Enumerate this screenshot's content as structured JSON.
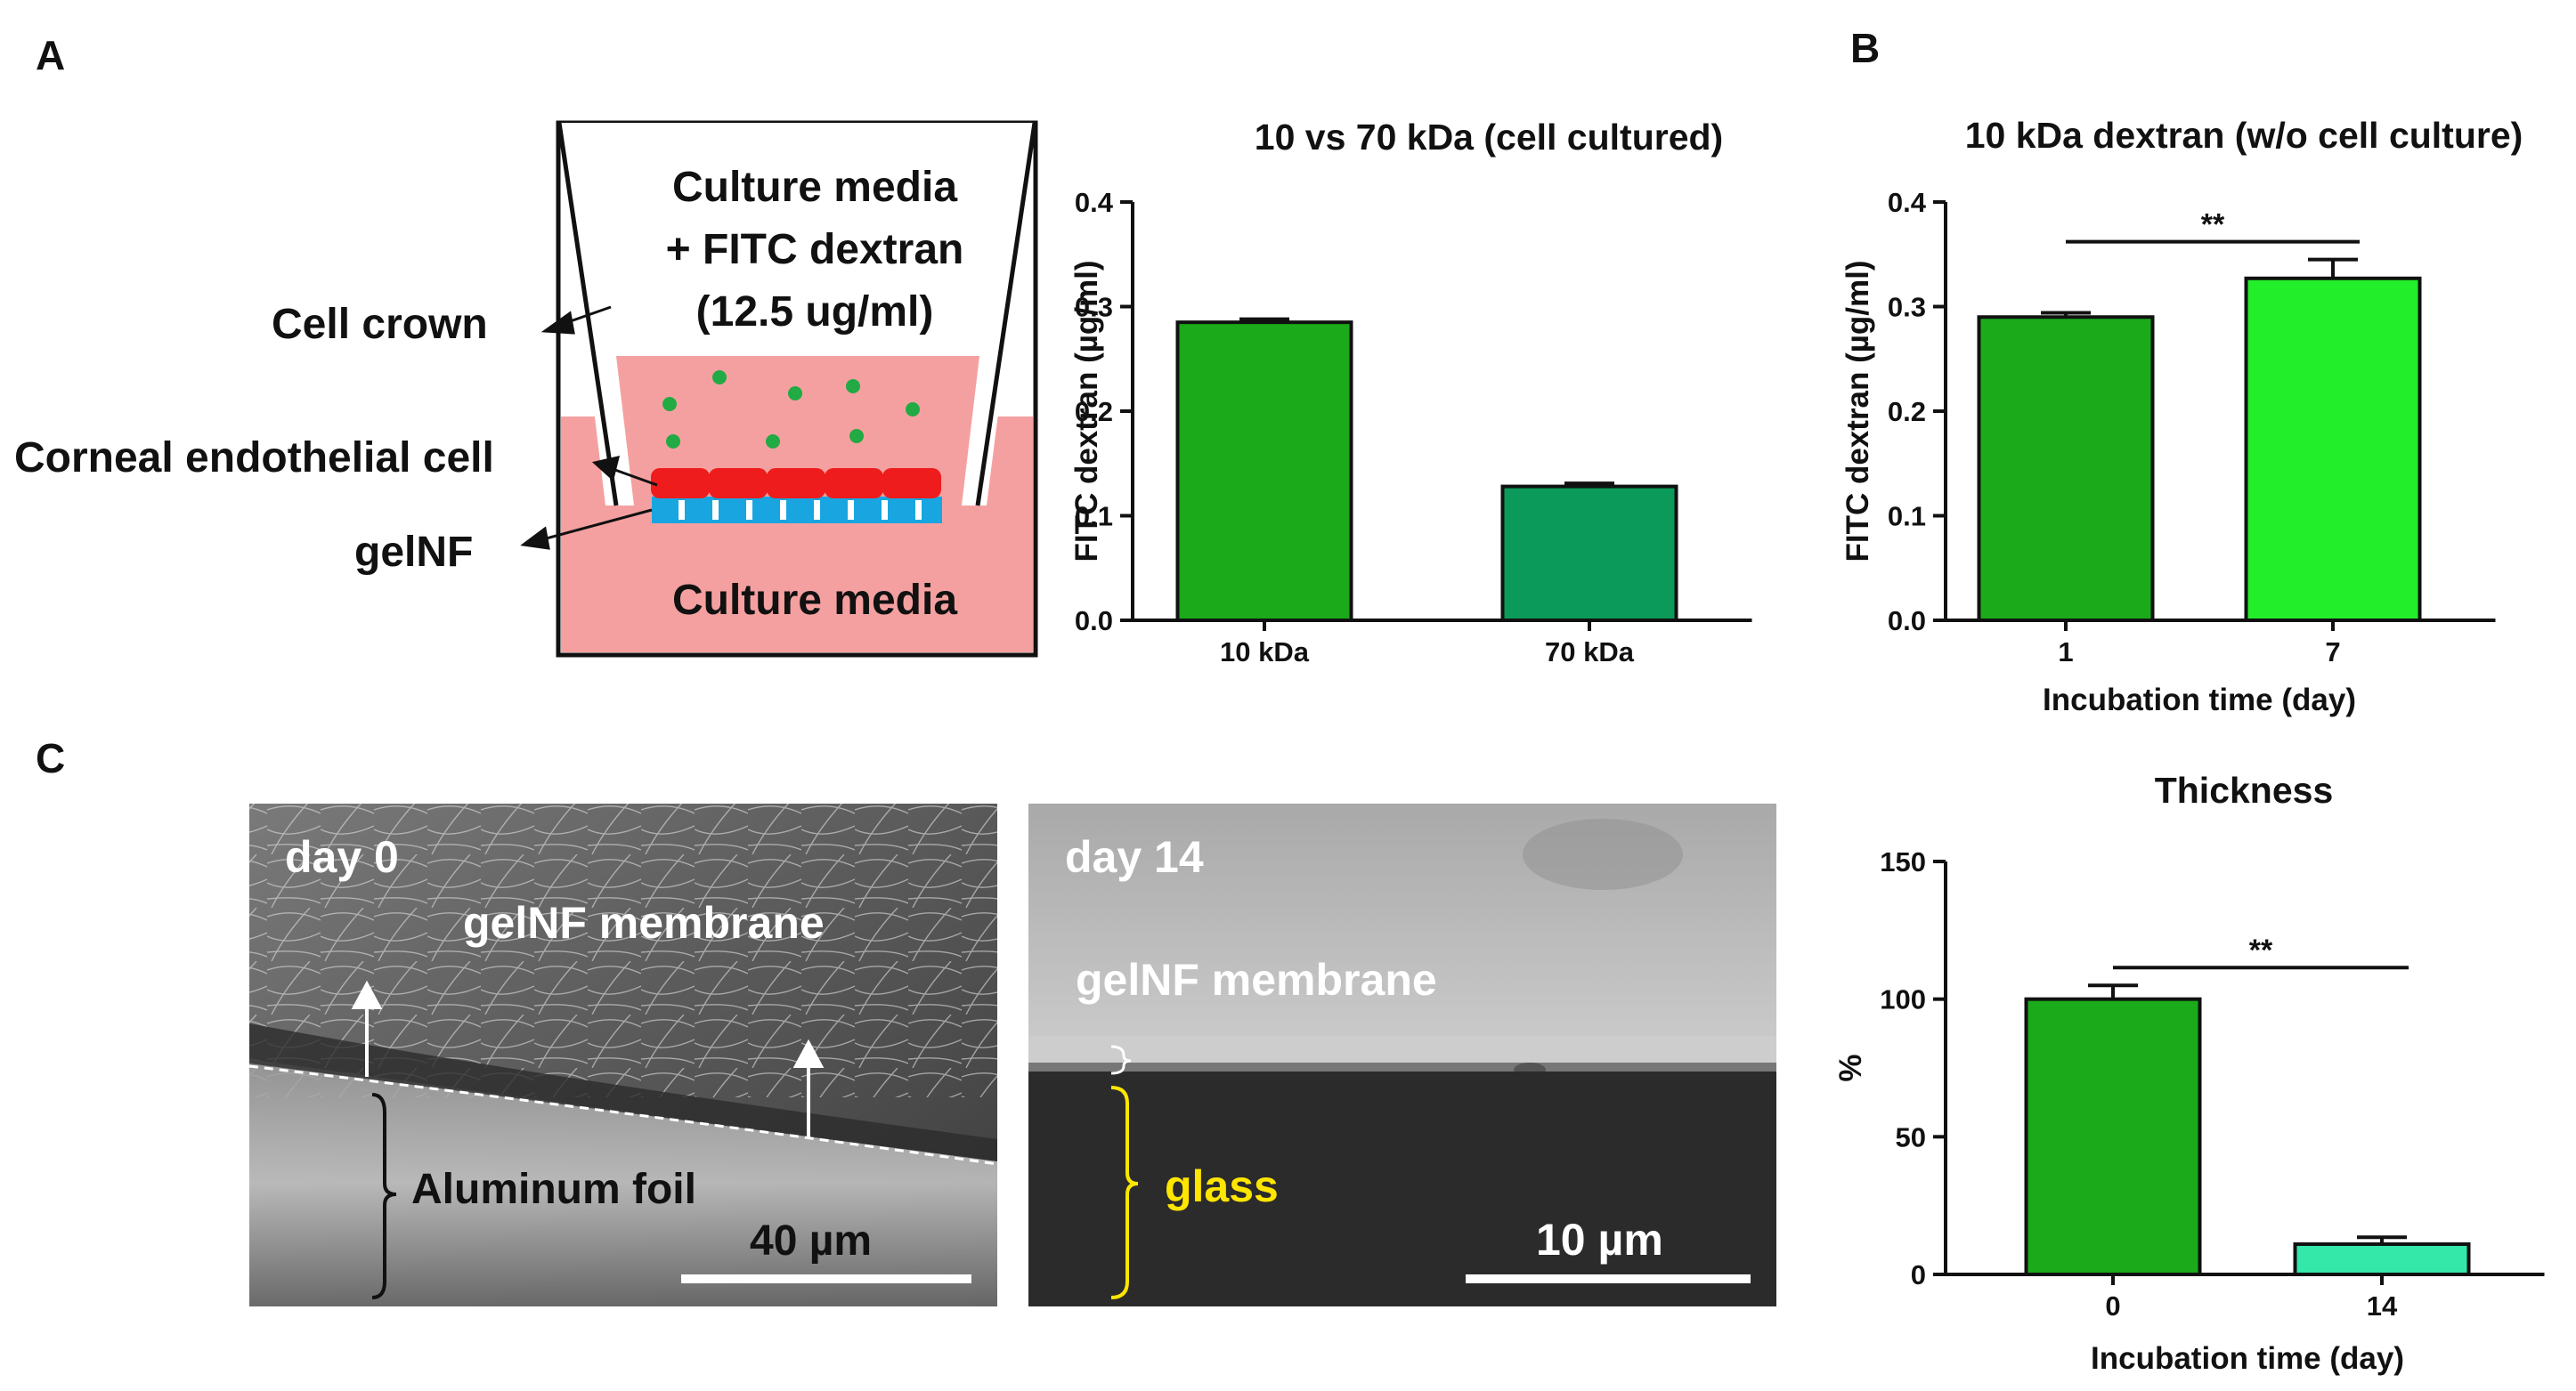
{
  "panels": {
    "a": "A",
    "b": "B",
    "c": "C"
  },
  "schematic": {
    "media_line1": "Culture media",
    "media_line2": "+ FITC dextran",
    "media_line3": "(12.5 ug/ml)",
    "cell_crown": "Cell crown",
    "endothelial": "Corneal endothelial cell",
    "gelnf": "gelNF",
    "bottom_media": "Culture media",
    "colors": {
      "media": "#f5a0a0",
      "cells": "#ee1c1c",
      "membrane": "#19a6e0",
      "dots": "#22aa44"
    }
  },
  "sem": {
    "left_day": "day 0",
    "left_membrane": "gelNF membrane",
    "left_foil": "Aluminum foil",
    "left_scale": "40 µm",
    "right_day": "day 14",
    "right_membrane": "gelNF membrane",
    "right_glass": "glass",
    "right_scale": "10 µm"
  },
  "chart_data": [
    {
      "type": "bar",
      "title": "10 vs 70 kDa (cell cultured)",
      "categories": [
        "10 kDa",
        "70 kDa"
      ],
      "values": [
        0.285,
        0.128
      ],
      "errors": [
        0.003,
        0.003
      ],
      "colors": [
        "#1aaa1a",
        "#0c9a5a"
      ],
      "ylabel": "FITC dextran (µg/ml)",
      "xlabel": "",
      "ylim": [
        0,
        0.4
      ],
      "yticks": [
        "0.0",
        "0.1",
        "0.2",
        "0.3",
        "0.4"
      ],
      "significance": ""
    },
    {
      "type": "bar",
      "title": "10 kDa dextran (w/o cell culture)",
      "categories": [
        "1",
        "7"
      ],
      "values": [
        0.29,
        0.327
      ],
      "errors": [
        0.004,
        0.018
      ],
      "colors": [
        "#1aaa1a",
        "#22ee2a"
      ],
      "ylabel": "FITC dextran (µg/ml)",
      "xlabel": "Incubation time (day)",
      "ylim": [
        0,
        0.4
      ],
      "yticks": [
        "0.0",
        "0.1",
        "0.2",
        "0.3",
        "0.4"
      ],
      "significance": "**"
    },
    {
      "type": "bar",
      "title": "Thickness",
      "categories": [
        "0",
        "14"
      ],
      "values": [
        100,
        11
      ],
      "errors": [
        5,
        2.5
      ],
      "colors": [
        "#1aaa1a",
        "#33e8a8"
      ],
      "ylabel": "%",
      "xlabel": "Incubation time (day)",
      "ylim": [
        0,
        150
      ],
      "yticks": [
        "0",
        "50",
        "100",
        "150"
      ],
      "significance": "**"
    }
  ]
}
